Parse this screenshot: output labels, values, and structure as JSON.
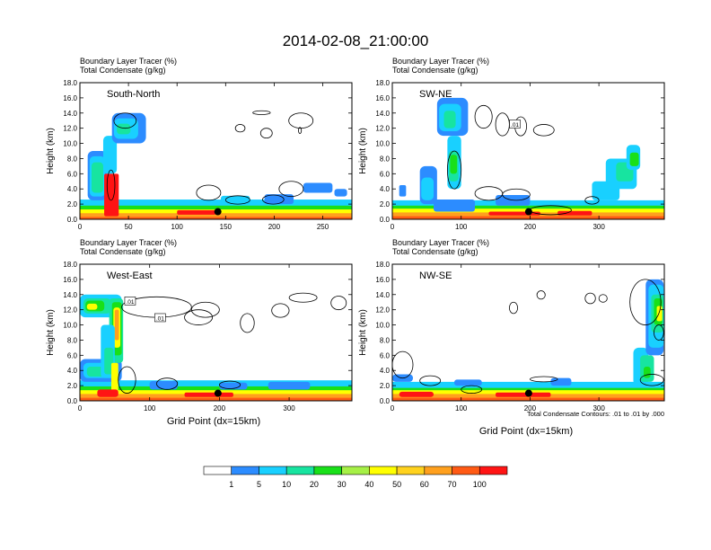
{
  "title": "2014-02-08_21:00:00",
  "xlabel": "Grid Point (dx=15km)",
  "contour_note": "Total Condensate Contours: .01 to .01 by .000",
  "colorbar": {
    "labels": [
      "1",
      "5",
      "10",
      "20",
      "30",
      "40",
      "50",
      "60",
      "70",
      "100"
    ],
    "colors": [
      "#ffffff",
      "#2c8cff",
      "#19d0ff",
      "#17e4a0",
      "#19e019",
      "#a6f046",
      "#ffff00",
      "#ffd21e",
      "#ffa01e",
      "#ff5a14",
      "#ff1414"
    ]
  },
  "chart_data": [
    {
      "type": "heatmap",
      "title": "South-North",
      "subtitle_lines": [
        "Boundary Layer Tracer   (%)",
        "Total Condensate   (g/kg)"
      ],
      "ylabel": "Height (km)",
      "ylim": [
        0,
        18
      ],
      "yticks": [
        "0.0",
        "2.0",
        "4.0",
        "6.0",
        "8.0",
        "10.0",
        "12.0",
        "14.0",
        "16.0",
        "18.0"
      ],
      "xlim": [
        0,
        280
      ],
      "xticks": [
        0,
        50,
        100,
        150,
        200,
        250
      ],
      "marker": {
        "x": 142,
        "y": 1.0
      },
      "contour_labels": []
    },
    {
      "type": "heatmap",
      "title": "SW-NE",
      "subtitle_lines": [
        "Boundary Layer Tracer   (%)",
        "Total Condensate   (g/kg)"
      ],
      "ylabel": "Height (km)",
      "ylim": [
        0,
        18
      ],
      "yticks": [
        "0.0",
        "2.0",
        "4.0",
        "6.0",
        "8.0",
        "10.0",
        "12.0",
        "14.0",
        "16.0",
        "18.0"
      ],
      "xlim": [
        0,
        395
      ],
      "xticks": [
        0,
        100,
        200,
        300
      ],
      "marker": {
        "x": 198,
        "y": 1.0
      },
      "contour_labels": [
        {
          "text": ".01",
          "x": 178,
          "y": 12.5
        }
      ]
    },
    {
      "type": "heatmap",
      "title": "West-East",
      "subtitle_lines": [
        "Boundary Layer Tracer   (%)",
        "Total Condensate   (g/kg)"
      ],
      "ylabel": "Height (km)",
      "ylim": [
        0,
        18
      ],
      "yticks": [
        "0.0",
        "2.0",
        "4.0",
        "6.0",
        "8.0",
        "10.0",
        "12.0",
        "14.0",
        "16.0",
        "18.0"
      ],
      "xlim": [
        0,
        390
      ],
      "xticks": [
        0,
        100,
        200,
        300
      ],
      "marker": {
        "x": 198,
        "y": 1.0
      },
      "contour_labels": [
        {
          "text": ".01",
          "x": 72,
          "y": 13.1
        },
        {
          "text": ".01",
          "x": 115,
          "y": 10.9
        }
      ]
    },
    {
      "type": "heatmap",
      "title": "NW-SE",
      "subtitle_lines": [
        "Boundary Layer Tracer   (%)",
        "Total Condensate   (g/kg)"
      ],
      "ylabel": "Height (km)",
      "ylim": [
        0,
        18
      ],
      "yticks": [
        "0.0",
        "2.0",
        "4.0",
        "6.0",
        "8.0",
        "10.0",
        "12.0",
        "14.0",
        "16.0",
        "18.0"
      ],
      "xlim": [
        0,
        395
      ],
      "xticks": [
        0,
        100,
        200,
        300
      ],
      "marker": {
        "x": 198,
        "y": 1.0
      },
      "contour_labels": []
    }
  ]
}
